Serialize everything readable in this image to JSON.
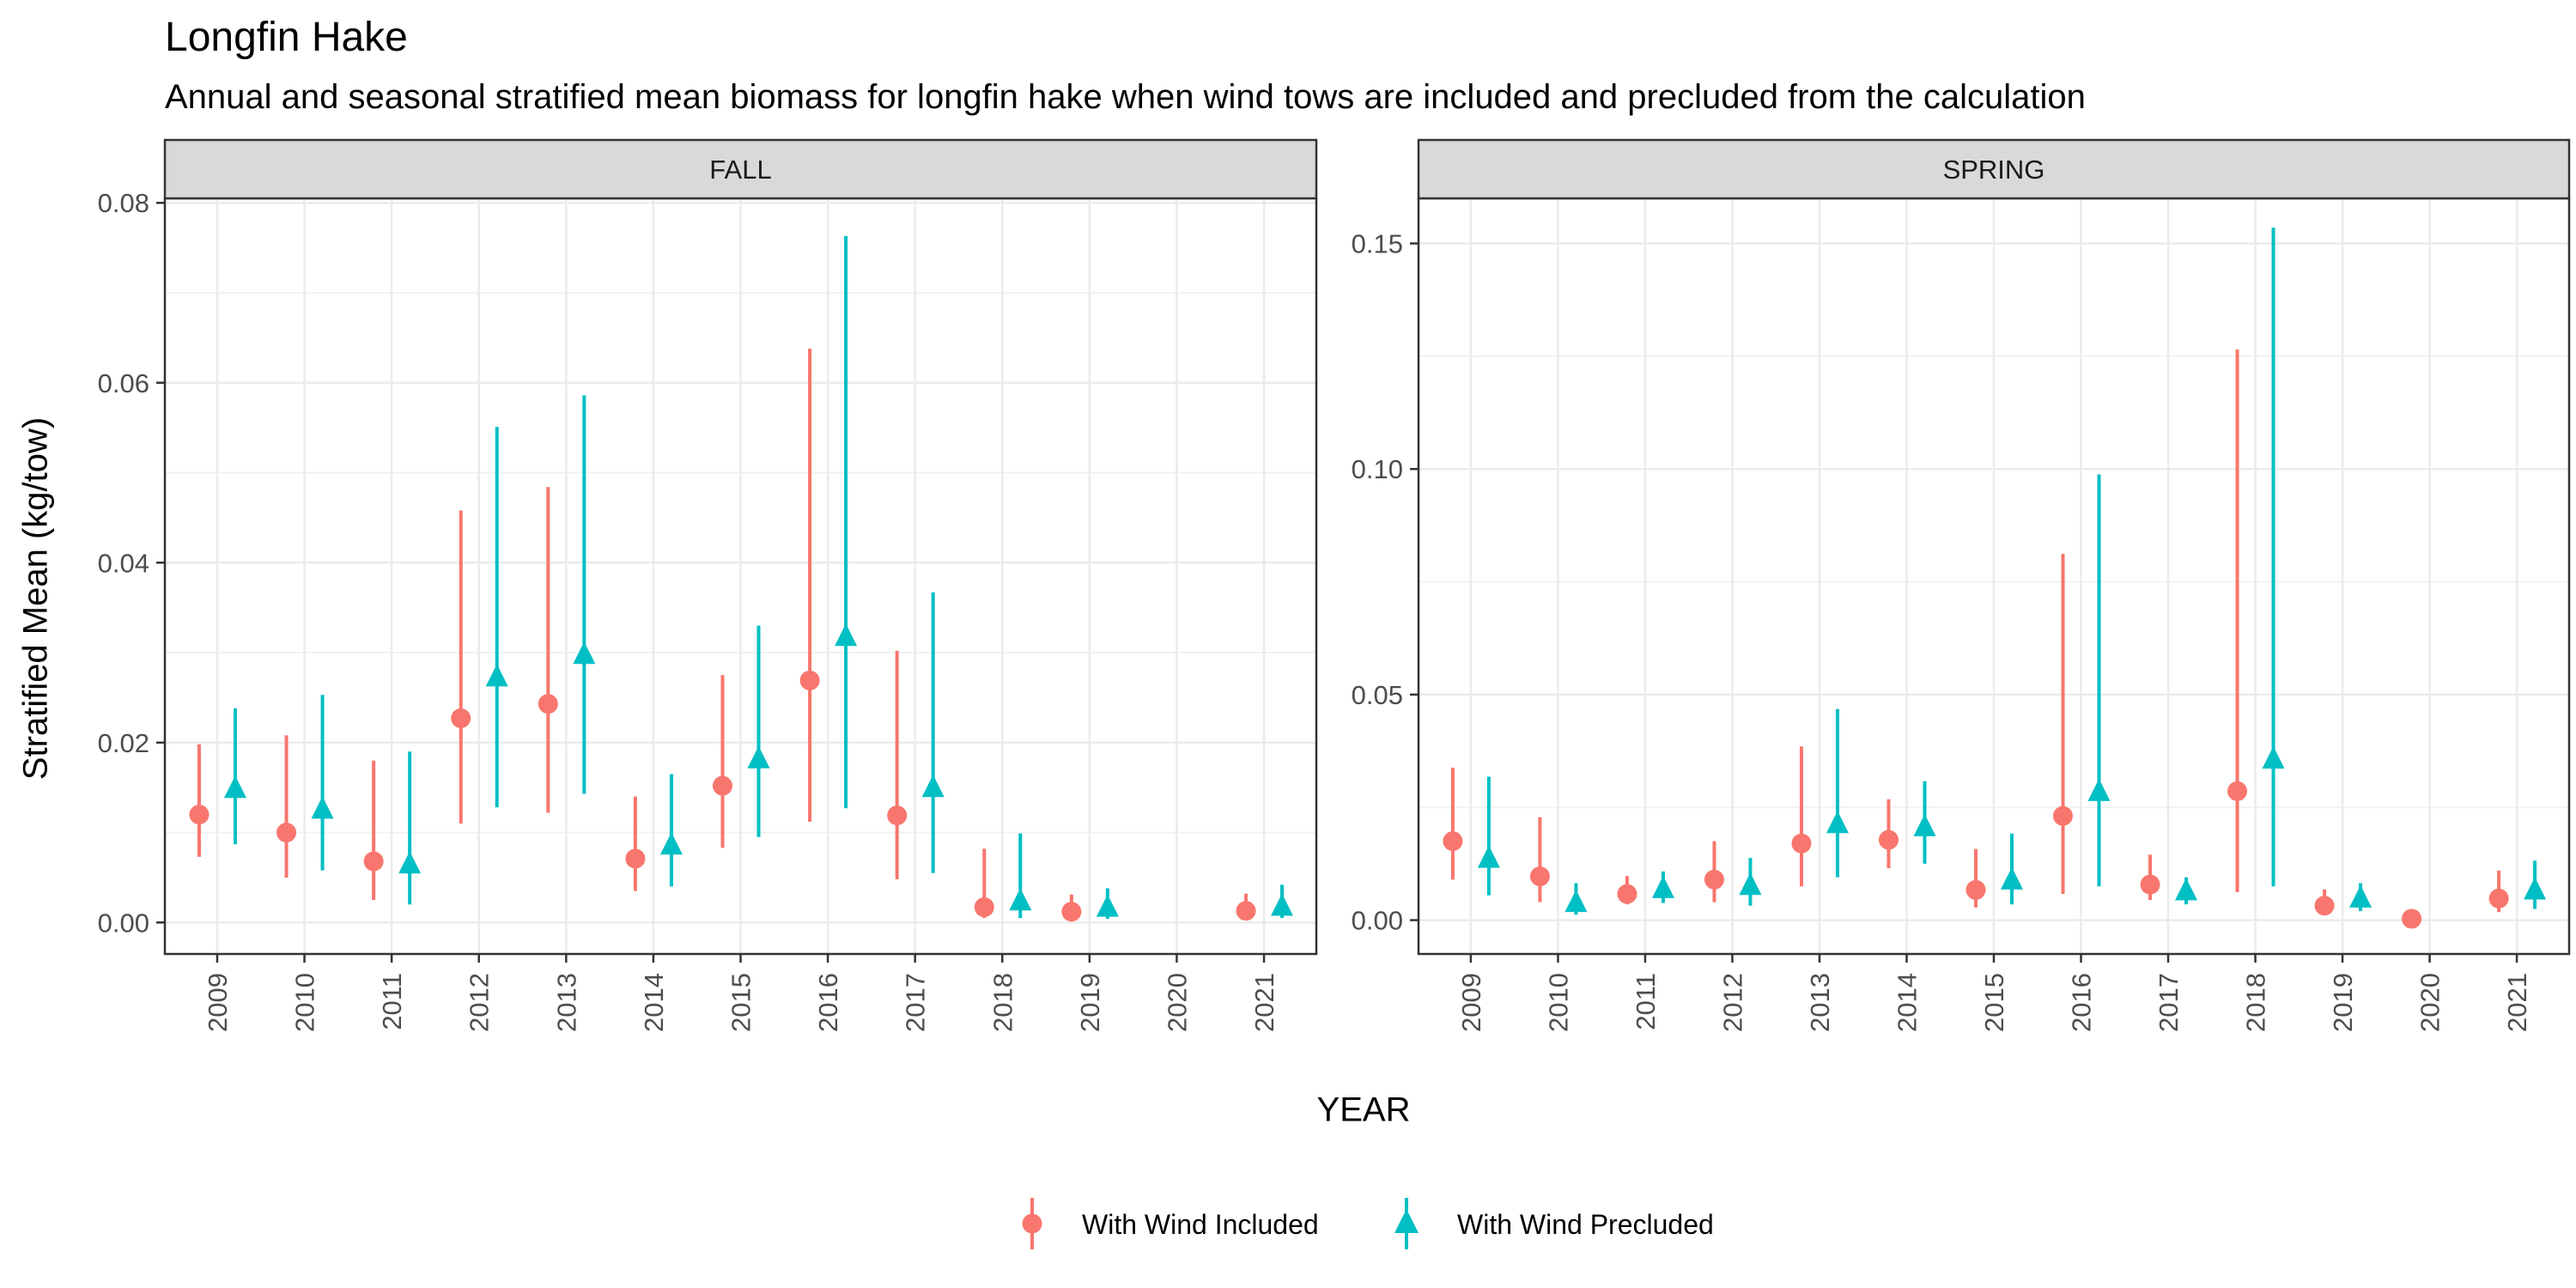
{
  "title": "Longfin Hake",
  "subtitle": "Annual and seasonal stratified mean biomass for longfin hake when wind tows are included and precluded from the calculation",
  "colors": {
    "included": "#F8766D",
    "precluded": "#00BFC4"
  },
  "chart_data": [
    {
      "type": "scatter",
      "panel": "FALL",
      "xlabel": "YEAR",
      "ylabel": "Stratified Mean (kg/tow)",
      "ylim": [
        -0.0035,
        0.0805
      ],
      "yticks": [
        "0.00",
        "0.02",
        "0.04",
        "0.06",
        "0.08"
      ],
      "categories": [
        "2009",
        "2010",
        "2011",
        "2012",
        "2013",
        "2014",
        "2015",
        "2016",
        "2017",
        "2018",
        "2019",
        "2020",
        "2021"
      ],
      "series": [
        {
          "name": "With Wind Included",
          "marker": "circle",
          "values": [
            0.012,
            0.01,
            0.0068,
            0.0227,
            0.0243,
            0.0071,
            0.0152,
            0.0269,
            0.0119,
            0.0017,
            0.0012,
            null,
            0.0013
          ],
          "lower": [
            0.0073,
            0.005,
            0.0025,
            0.011,
            0.0122,
            0.0035,
            0.0083,
            0.0112,
            0.0048,
            0.0005,
            0.0004,
            null,
            0.0005
          ],
          "upper": [
            0.0198,
            0.0208,
            0.018,
            0.0458,
            0.0484,
            0.014,
            0.0275,
            0.0638,
            0.0302,
            0.0082,
            0.0031,
            null,
            0.0032
          ]
        },
        {
          "name": "With Wind Precluded",
          "marker": "triangle",
          "values": [
            0.0148,
            0.0125,
            0.0064,
            0.0272,
            0.0297,
            0.0085,
            0.0181,
            0.0317,
            0.0149,
            0.0023,
            0.0016,
            null,
            0.0017
          ],
          "lower": [
            0.0087,
            0.0058,
            0.002,
            0.0128,
            0.0143,
            0.004,
            0.0095,
            0.0127,
            0.0055,
            0.0005,
            0.0004,
            null,
            0.0005
          ],
          "upper": [
            0.0238,
            0.0253,
            0.019,
            0.0551,
            0.0586,
            0.0165,
            0.033,
            0.0763,
            0.0367,
            0.0099,
            0.0038,
            null,
            0.0042
          ]
        }
      ]
    },
    {
      "type": "scatter",
      "panel": "SPRING",
      "xlabel": "YEAR",
      "ylabel": "Stratified Mean (kg/tow)",
      "ylim": [
        -0.0075,
        0.16
      ],
      "yticks": [
        "0.00",
        "0.05",
        "0.10",
        "0.15"
      ],
      "categories": [
        "2009",
        "2010",
        "2011",
        "2012",
        "2013",
        "2014",
        "2015",
        "2016",
        "2017",
        "2018",
        "2019",
        "2020",
        "2021"
      ],
      "series": [
        {
          "name": "With Wind Included",
          "marker": "circle",
          "values": [
            0.0175,
            0.0097,
            0.0058,
            0.009,
            0.017,
            0.0178,
            0.0067,
            0.0231,
            0.0079,
            0.0286,
            0.0032,
            0.0003,
            0.0048
          ],
          "lower": [
            0.009,
            0.004,
            0.0035,
            0.004,
            0.0075,
            0.0115,
            0.0028,
            0.0058,
            0.0045,
            0.0062,
            0.0015,
            0.0001,
            0.0018
          ],
          "upper": [
            0.0338,
            0.0228,
            0.0098,
            0.0175,
            0.0385,
            0.0268,
            0.0158,
            0.0812,
            0.0145,
            0.1265,
            0.0068,
            0.0008,
            0.011
          ]
        },
        {
          "name": "With Wind Precluded",
          "marker": "triangle",
          "values": [
            0.0135,
            0.0037,
            0.0068,
            0.0075,
            0.0212,
            0.0205,
            0.0087,
            0.0283,
            0.0063,
            0.0355,
            0.0047,
            null,
            0.0065
          ],
          "lower": [
            0.0055,
            0.0012,
            0.0038,
            0.0032,
            0.0095,
            0.0125,
            0.0035,
            0.0075,
            0.0035,
            0.0075,
            0.002,
            null,
            0.0025
          ],
          "upper": [
            0.0318,
            0.0082,
            0.0108,
            0.0138,
            0.0468,
            0.0308,
            0.0192,
            0.0988,
            0.0095,
            0.1535,
            0.0082,
            null,
            0.0132
          ]
        }
      ]
    }
  ]
}
